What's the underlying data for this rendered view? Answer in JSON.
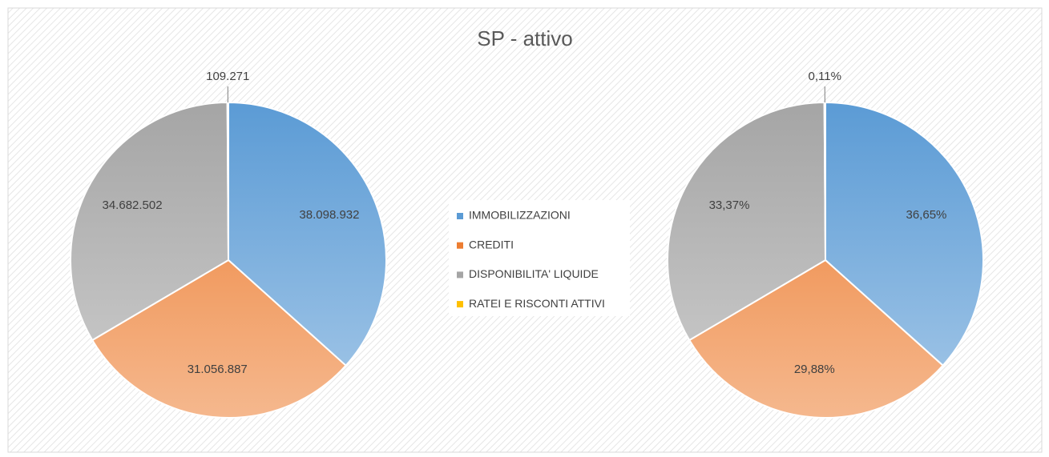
{
  "chart_data": [
    {
      "type": "pie",
      "title": "SP - attivo",
      "categories": [
        "IMMOBILIZZAZIONI",
        "CREDITI",
        "DISPONIBILITA' LIQUIDE",
        "RATEI E RISCONTI ATTIVI"
      ],
      "values": [
        38098932,
        31056887,
        34682502,
        109271
      ],
      "value_labels": [
        "38.098.932",
        "31.056.887",
        "34.682.502",
        "109.271"
      ],
      "colors": [
        "#5b9bd5",
        "#ed7d31",
        "#a5a5a5",
        "#ffc000"
      ],
      "legend": "center"
    },
    {
      "type": "pie",
      "values": [
        36.65,
        29.88,
        33.37,
        0.11
      ],
      "value_labels": [
        "36,65%",
        "29,88%",
        "33,37%",
        "0,11%"
      ],
      "colors": [
        "#5b9bd5",
        "#ed7d31",
        "#a5a5a5",
        "#ffc000"
      ]
    }
  ]
}
